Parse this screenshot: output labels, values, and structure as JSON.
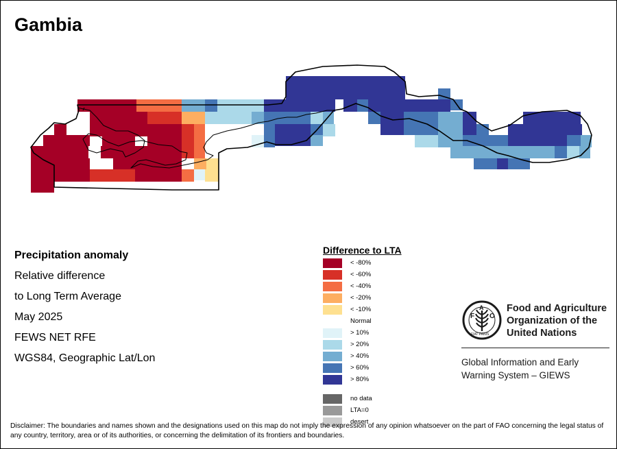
{
  "map": {
    "title": "Gambia"
  },
  "info": {
    "lines": [
      "Precipitation anomaly",
      "Relative difference",
      "to Long Term Average",
      "May 2025",
      "FEWS NET RFE",
      "WGS84, Geographic Lat/Lon"
    ]
  },
  "legend": {
    "title": "Difference to LTA",
    "items": [
      {
        "label": "< -80%",
        "color": "#a50026"
      },
      {
        "label": "< -60%",
        "color": "#d73027"
      },
      {
        "label": "< -40%",
        "color": "#f46d43"
      },
      {
        "label": "< -20%",
        "color": "#fdae61"
      },
      {
        "label": "< -10%",
        "color": "#fee090"
      },
      {
        "label": "Normal",
        "color": "#ffffff"
      },
      {
        "label": "> 10%",
        "color": "#e0f3f8"
      },
      {
        "label": "> 20%",
        "color": "#abd9e9"
      },
      {
        "label": "> 40%",
        "color": "#74add1"
      },
      {
        "label": "> 60%",
        "color": "#4575b4"
      },
      {
        "label": "> 80%",
        "color": "#313695"
      },
      {
        "label": "no data",
        "color": "#666666"
      },
      {
        "label": "LTA=0",
        "color": "#999999"
      },
      {
        "label": "desert",
        "color": "#cccccc"
      }
    ]
  },
  "org": {
    "name": "Food and Agriculture Organization of the United Nations",
    "logo_text": "FAO",
    "logo_motto": "FIAT PANIS",
    "program": "Global Information and Early Warning System – GIEWS"
  },
  "disclaimer": "Disclaimer: The boundaries and names shown and the designations used on this map do not imply the expression of any opinion whatsoever on the part of FAO concerning the legal status of any country, territory, area or of its authorities, or concerning the delimitation of its frontiers and boundaries."
}
